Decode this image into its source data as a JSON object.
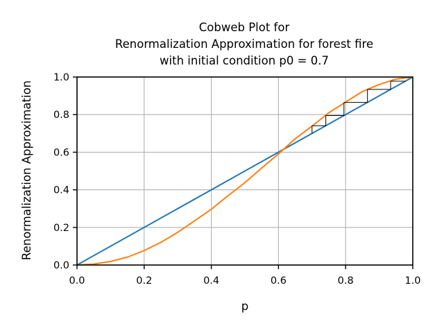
{
  "chart_data": {
    "type": "line",
    "title": [
      "Cobweb Plot for",
      "Renormalization Approximation for forest fire",
      "with initial condition p0 = 0.7"
    ],
    "xlabel": "p",
    "ylabel": "Renormalization Approximation",
    "xlim": [
      0.0,
      1.0
    ],
    "ylim": [
      0.0,
      1.0
    ],
    "xticks": [
      "0.0",
      "0.2",
      "0.4",
      "0.6",
      "0.8",
      "1.0"
    ],
    "yticks": [
      "0.0",
      "0.2",
      "0.4",
      "0.6",
      "0.8",
      "1.0"
    ],
    "grid": true,
    "legend": "none",
    "series": [
      {
        "color": "#1f77b4",
        "x": [
          0.0,
          1.0
        ],
        "y": [
          0.0,
          1.0
        ]
      },
      {
        "color": "#ff7f0e",
        "x": [
          0.0,
          0.05,
          0.1,
          0.15,
          0.2,
          0.25,
          0.3,
          0.35,
          0.4,
          0.45,
          0.5,
          0.55,
          0.6,
          0.65,
          0.7,
          0.75,
          0.8,
          0.85,
          0.9,
          0.95,
          1.0
        ],
        "y": [
          0.0,
          0.005,
          0.019,
          0.042,
          0.077,
          0.121,
          0.174,
          0.235,
          0.297,
          0.369,
          0.438,
          0.516,
          0.591,
          0.672,
          0.739,
          0.81,
          0.867,
          0.923,
          0.96,
          0.989,
          1.0
        ]
      }
    ],
    "cobweb": {
      "color": "#000000",
      "p0": 0.7,
      "iterates": [
        0.7,
        0.741,
        0.795,
        0.865,
        0.934,
        0.978
      ]
    }
  }
}
